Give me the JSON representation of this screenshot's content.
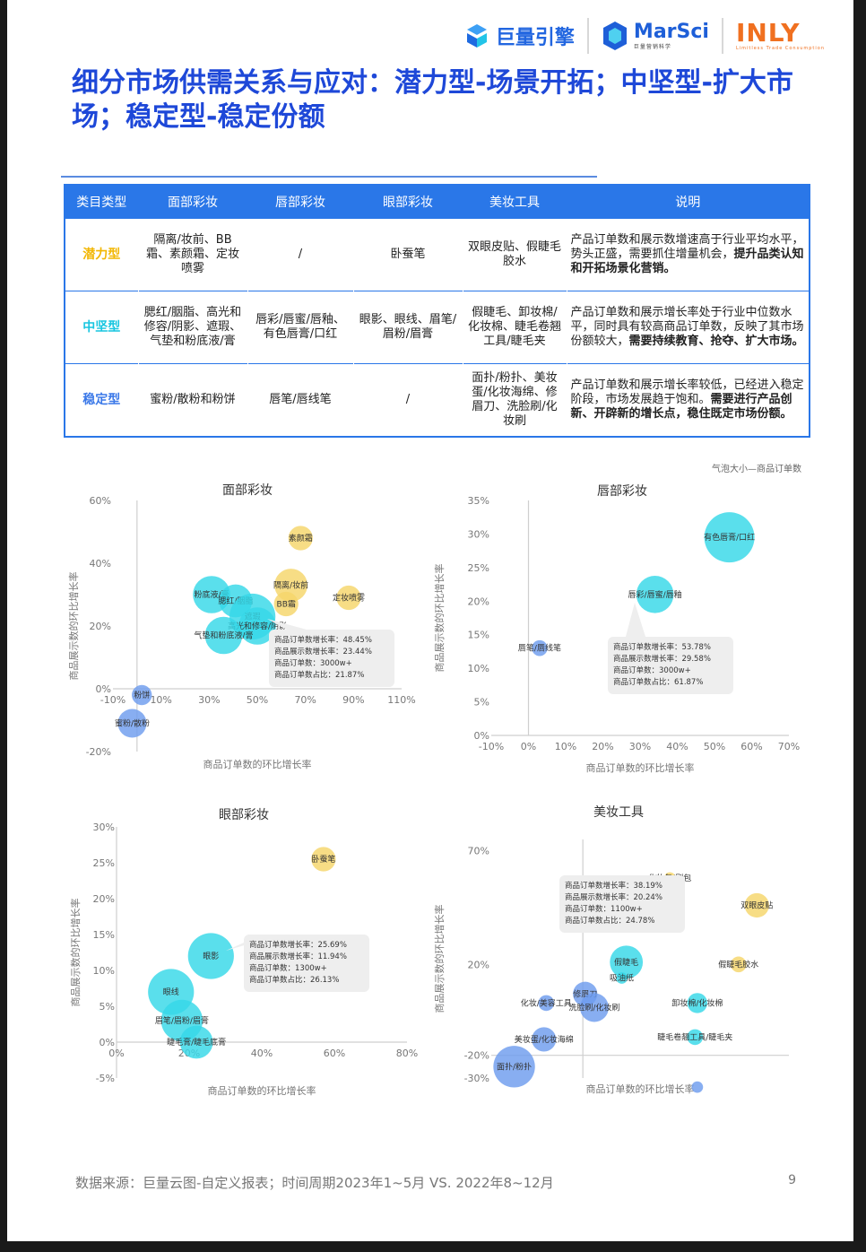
{
  "brand": {
    "logo1": "巨量引擎",
    "logo2_main": "MarSci",
    "logo2_sub": "巨量营销科学",
    "logo3_main": "INLY",
    "logo3_sub": "Limitless  Trade  Consumption"
  },
  "title": "细分市场供需关系与应对：潜力型-场景开拓；中坚型-扩大市场；稳定型-稳定份额",
  "table": {
    "headers": [
      "类目类型",
      "面部彩妆",
      "唇部彩妆",
      "眼部彩妆",
      "美妆工具",
      "说明"
    ],
    "rows": [
      {
        "type": "潜力型",
        "type_color": "#f2b705",
        "face": "隔离/妆前、BB霜、素颜霜、定妆喷雾",
        "lip": "/",
        "eye": "卧蚕笔",
        "tool": "双眼皮贴、假睫毛胶水",
        "desc_plain": "产品订单数和展示数增速高于行业平均水平，势头正盛，需要抓住增量机会，",
        "desc_bold": "提升品类认知和开拓场景化营销。"
      },
      {
        "type": "中坚型",
        "type_color": "#18c6e0",
        "face": "腮红/胭脂、高光和修容/阴影、遮瑕、气垫和粉底液/膏",
        "lip": "唇彩/唇蜜/唇釉、有色唇膏/口红",
        "eye": "眼影、眼线、眉笔/眉粉/眉膏",
        "tool": "假睫毛、卸妆棉/化妆棉、睫毛卷翘工具/睫毛夹",
        "desc_plain": "产品订单数和展示增长率处于行业中位数水平，同时具有较高商品订单数，反映了其市场份额较大，",
        "desc_bold": "需要持续教育、抢夺、扩大市场。"
      },
      {
        "type": "稳定型",
        "type_color": "#3a78e8",
        "face": "蜜粉/散粉和粉饼",
        "lip": "唇笔/唇线笔",
        "eye": "/",
        "tool": "面扑/粉扑、美妆蛋/化妆海绵、修眉刀、洗脸刷/化妆刷",
        "desc_plain": "产品订单数和展示增长率较低，已经进入稳定阶段，市场发展趋于饱和。",
        "desc_bold": "需要进行产品创新、开辟新的增长点，稳住既定市场份额。"
      }
    ]
  },
  "bubble_note": "气泡大小—商品订单数",
  "colors": {
    "potential": "#f5d56a",
    "core": "#36d8e8",
    "stable": "#6e9cee"
  },
  "tooltip_labels": [
    "商品订单数增长率：",
    "商品展示数增长率：",
    "商品订单数：",
    "商品订单数占比："
  ],
  "chart_data": [
    {
      "type": "scatter",
      "title": "面部彩妆",
      "xlabel": "商品订单数的环比增长率",
      "ylabel": "商品展示数的环比增长率",
      "xlim": [
        -10,
        110
      ],
      "ylim": [
        -20,
        60
      ],
      "xticks": [
        "-10%",
        "10%",
        "30%",
        "50%",
        "70%",
        "90%",
        "110%"
      ],
      "xtick_values": [
        -10,
        10,
        30,
        50,
        70,
        90,
        110
      ],
      "yticks": [
        "-20%",
        "0%",
        "20%",
        "40%",
        "60%"
      ],
      "ytick_values": [
        -20,
        0,
        20,
        40,
        60
      ],
      "points": [
        {
          "label": "素颜霜",
          "x": 68,
          "y": 48,
          "size": 4,
          "cat": "potential"
        },
        {
          "label": "隔离/妆前",
          "x": 64,
          "y": 33,
          "size": 6,
          "cat": "potential"
        },
        {
          "label": "BB霜",
          "x": 62,
          "y": 27,
          "size": 4,
          "cat": "potential"
        },
        {
          "label": "定妆喷雾",
          "x": 88,
          "y": 29,
          "size": 4,
          "cat": "potential"
        },
        {
          "label": "粉底液/膏",
          "x": 31,
          "y": 30,
          "size": 7,
          "cat": "core"
        },
        {
          "label": "腮红/胭脂",
          "x": 41,
          "y": 28,
          "size": 6,
          "cat": "core"
        },
        {
          "label": "遮瑕",
          "x": 48,
          "y": 23,
          "size": 9,
          "cat": "core"
        },
        {
          "label": "高光和修容/阴影",
          "x": 50,
          "y": 20,
          "size": 7,
          "cat": "core"
        },
        {
          "label": "气垫和粉底液/膏",
          "x": 36,
          "y": 17,
          "size": 7,
          "cat": "core"
        },
        {
          "label": "粉饼",
          "x": 2,
          "y": -2,
          "size": 3,
          "cat": "stable"
        },
        {
          "label": "蜜粉/散粉",
          "x": -2,
          "y": -11,
          "size": 5,
          "cat": "stable"
        }
      ],
      "tooltip": {
        "values": [
          "48.45%",
          "23.44%",
          "3000w+",
          "21.87%"
        ]
      }
    },
    {
      "type": "scatter",
      "title": "唇部彩妆",
      "xlabel": "商品订单数的环比增长率",
      "ylabel": "商品展示数的环比增长率",
      "xlim": [
        -10,
        70
      ],
      "ylim": [
        0,
        35
      ],
      "xticks": [
        "-10%",
        "0%",
        "10%",
        "20%",
        "30%",
        "40%",
        "50%",
        "60%",
        "70%"
      ],
      "xtick_values": [
        -10,
        0,
        10,
        20,
        30,
        40,
        50,
        60,
        70
      ],
      "yticks": [
        "0%",
        "5%",
        "10%",
        "15%",
        "20%",
        "25%",
        "30%",
        "35%"
      ],
      "ytick_values": [
        0,
        5,
        10,
        15,
        20,
        25,
        30,
        35
      ],
      "points": [
        {
          "label": "有色唇膏/口红",
          "x": 54,
          "y": 29.5,
          "size": 10,
          "cat": "core"
        },
        {
          "label": "唇彩/唇蜜/唇釉",
          "x": 34,
          "y": 21,
          "size": 7,
          "cat": "core"
        },
        {
          "label": "唇笔/唇线笔",
          "x": 3,
          "y": 13,
          "size": 2,
          "cat": "stable"
        }
      ],
      "tooltip": {
        "values": [
          "53.78%",
          "29.58%",
          "3000w+",
          "61.87%"
        ]
      }
    },
    {
      "type": "scatter",
      "title": "眼部彩妆",
      "xlabel": "商品订单数的环比增长率",
      "ylabel": "商品展示数的环比增长率",
      "xlim": [
        0,
        80
      ],
      "ylim": [
        -5,
        30
      ],
      "xticks": [
        "0%",
        "20%",
        "40%",
        "60%",
        "80%"
      ],
      "xtick_values": [
        0,
        20,
        40,
        60,
        80
      ],
      "yticks": [
        "-5%",
        "0%",
        "5%",
        "10%",
        "15%",
        "20%",
        "25%",
        "30%"
      ],
      "ytick_values": [
        -5,
        0,
        5,
        10,
        15,
        20,
        25,
        30
      ],
      "points": [
        {
          "label": "卧蚕笔",
          "x": 57,
          "y": 25.5,
          "size": 4,
          "cat": "potential"
        },
        {
          "label": "眼影",
          "x": 26,
          "y": 12,
          "size": 9,
          "cat": "core"
        },
        {
          "label": "眼线",
          "x": 15,
          "y": 7,
          "size": 9,
          "cat": "core"
        },
        {
          "label": "眉笔/眉粉/眉膏",
          "x": 18,
          "y": 3,
          "size": 8,
          "cat": "core"
        },
        {
          "label": "睫毛膏/睫毛底膏",
          "x": 22,
          "y": 0,
          "size": 6,
          "cat": "core"
        }
      ],
      "tooltip": {
        "values": [
          "25.69%",
          "11.94%",
          "1300w+",
          "26.13%"
        ]
      }
    },
    {
      "type": "scatter",
      "title": "美妆工具",
      "xlabel": "商品订单数的环比增长率",
      "ylabel": "商品展示数的环比增长率",
      "xlim": [
        -20,
        110
      ],
      "ylim": [
        -30,
        75
      ],
      "xticks": [],
      "xtick_values": [],
      "yticks": [
        "-30%",
        "-20%",
        "20%",
        "70%"
      ],
      "ytick_values": [
        -30,
        -20,
        20,
        70
      ],
      "y_cross": -20,
      "x_cross": 20,
      "points": [
        {
          "label": "化妆包/刷包",
          "x": 58,
          "y": 58,
          "size": 1,
          "cat": "potential"
        },
        {
          "label": "双眼皮贴",
          "x": 96,
          "y": 46,
          "size": 4,
          "cat": "potential"
        },
        {
          "label": "假睫毛胶水",
          "x": 88,
          "y": 20,
          "size": 2,
          "cat": "potential"
        },
        {
          "label": "假睫毛",
          "x": 39,
          "y": 21,
          "size": 6,
          "cat": "core"
        },
        {
          "label": "卸妆棉/化妆棉",
          "x": 70,
          "y": 3,
          "size": 3,
          "cat": "core"
        },
        {
          "label": "睫毛卷翘工具/睫毛夹",
          "x": 69,
          "y": -12,
          "size": 2,
          "cat": "core"
        },
        {
          "label": "修眉刀",
          "x": 21,
          "y": 7,
          "size": 4,
          "cat": "stable"
        },
        {
          "label": "洗脸刷/化妆刷",
          "x": 25,
          "y": 1,
          "size": 5,
          "cat": "stable"
        },
        {
          "label": "化妆/美容工具",
          "x": 4,
          "y": 3,
          "size": 2,
          "cat": "stable"
        },
        {
          "label": "美妆蛋/化妆海绵",
          "x": 3,
          "y": -13,
          "size": 4,
          "cat": "stable"
        },
        {
          "label": "面扑/粉扑",
          "x": -10,
          "y": -25,
          "size": 8,
          "cat": "stable"
        },
        {
          "label": "吸油纸",
          "x": 37,
          "y": 14,
          "size": 1,
          "cat": "core"
        },
        {
          "label": "",
          "x": 70,
          "y": -34,
          "size": 1,
          "cat": "stable"
        }
      ],
      "tooltip": {
        "values": [
          "38.19%",
          "20.24%",
          "1100w+",
          "24.78%"
        ]
      }
    }
  ],
  "footer": "数据来源：巨量云图-自定义报表；时间周期2023年1~5月 VS. 2022年8~12月",
  "page_number": "9"
}
